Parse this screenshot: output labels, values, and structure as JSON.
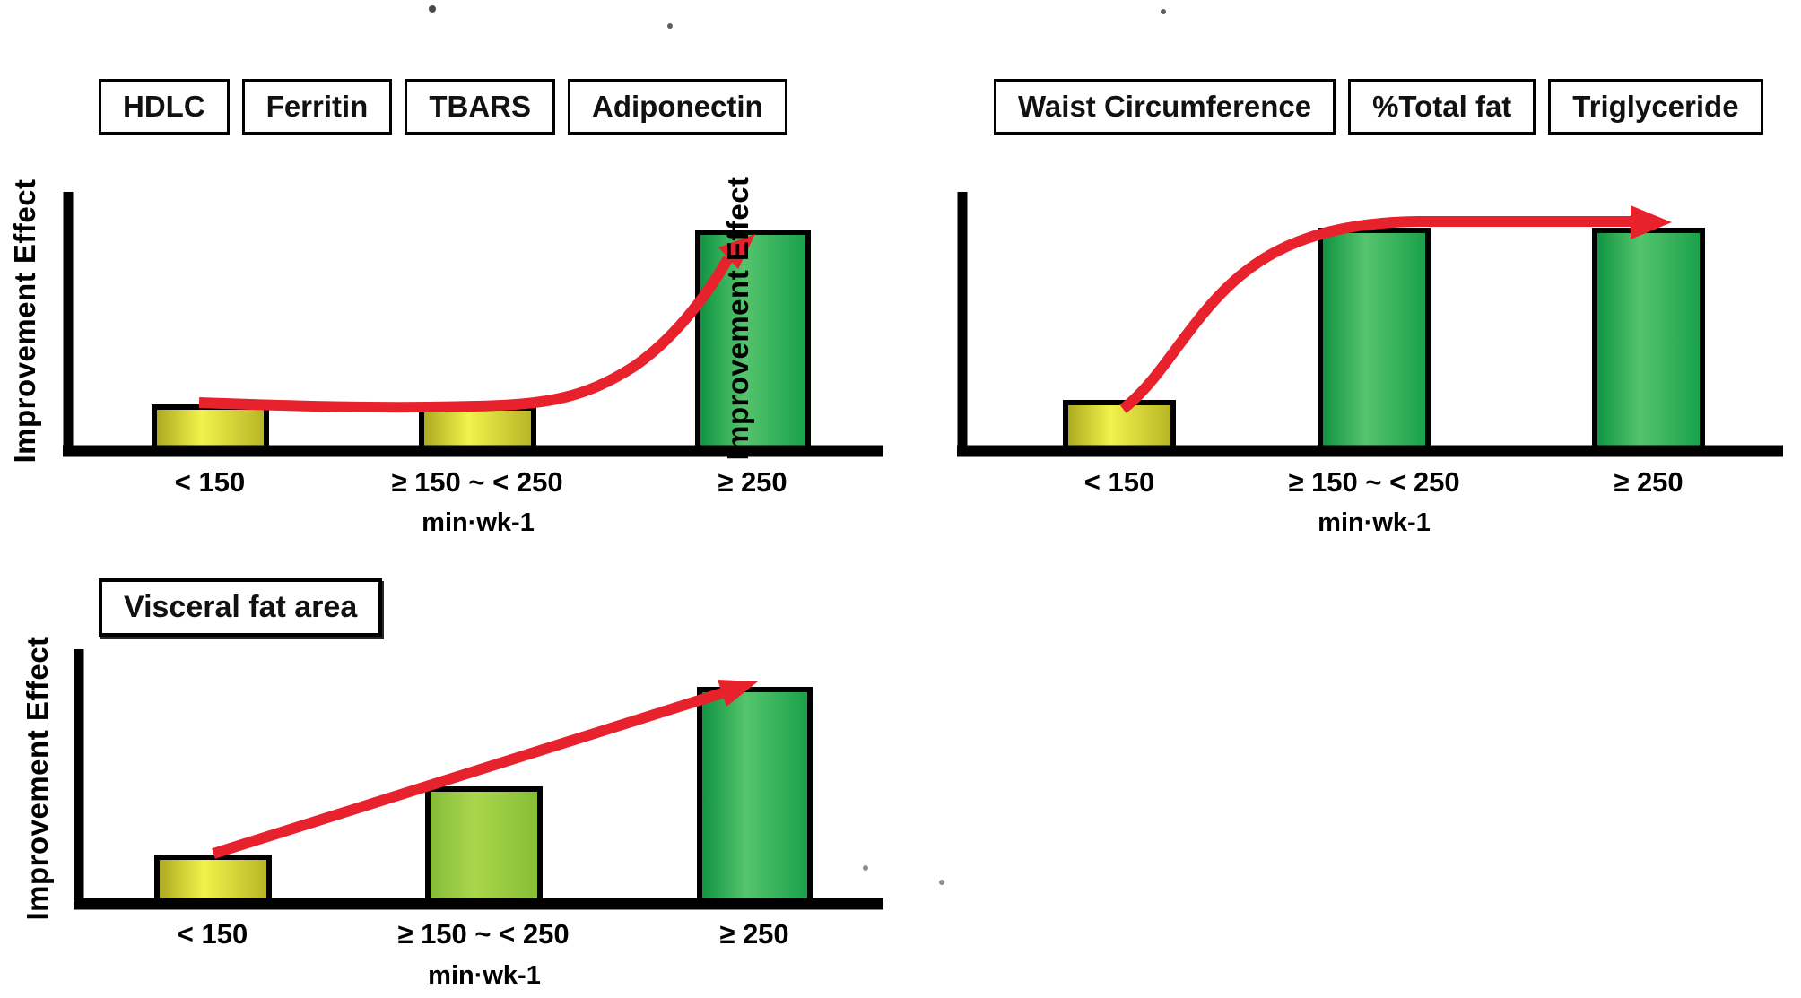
{
  "colors": {
    "background": "#ffffff",
    "arrow_red": "#e8222c",
    "axis": "#000000",
    "bar_outline": "#000000",
    "box_fill": "#ffffff",
    "box_border": "#000000",
    "bar_yellow": [
      "#a9a61d",
      "#f1f24c",
      "#b6b325"
    ],
    "bar_yellowgreen": [
      "#83ba38",
      "#aad64b",
      "#86bd33"
    ],
    "bar_green": [
      "#0d9140",
      "#55c46d",
      "#17a04a"
    ]
  },
  "chart_data": [
    {
      "type": "bar",
      "panel": "top-left",
      "outcome_boxes": [
        "HDLC",
        "Ferritin",
        "TBARS",
        "Adiponectin"
      ],
      "ylabel": "Improvement Effect",
      "xlabel": "",
      "x_unit": "min·wk-1",
      "categories": [
        "< 150",
        "≥ 150 ~ < 250",
        "≥ 250"
      ],
      "values": [
        0.2,
        0.195,
        0.99
      ],
      "bar_colors": [
        "yellow",
        "yellow",
        "green"
      ],
      "ylim": [
        0,
        1
      ],
      "grid": false,
      "annotation": "red arrow: flat across first two categories, then steep rise to ≥ 250"
    },
    {
      "type": "bar",
      "panel": "top-right",
      "outcome_boxes": [
        "Waist Circumference",
        "%Total fat",
        "Triglyceride"
      ],
      "ylabel": "Improvement Effect",
      "xlabel": "",
      "x_unit": "min·wk-1",
      "categories": [
        "< 150",
        "≥ 150 ~ < 250",
        "≥ 250"
      ],
      "values": [
        0.22,
        1.0,
        1.0
      ],
      "bar_colors": [
        "yellow",
        "green",
        "green"
      ],
      "ylim": [
        0,
        1
      ],
      "grid": false,
      "annotation": "red arrow: rises from < 150 then plateaus across ≥ 150 ~ < 250 and ≥ 250"
    },
    {
      "type": "bar",
      "panel": "bottom-left",
      "outcome_boxes": [
        "Visceral fat area"
      ],
      "ylabel": "Improvement Effect",
      "xlabel": "",
      "x_unit": "min·wk-1",
      "categories": [
        "< 150",
        "≥ 150 ~ < 250",
        "≥ 250"
      ],
      "values": [
        0.21,
        0.52,
        0.97
      ],
      "bar_colors": [
        "yellow",
        "yellowgreen",
        "green"
      ],
      "ylim": [
        0,
        1
      ],
      "grid": false,
      "annotation": "red arrow: straight steady rise from < 150 to ≥ 250"
    }
  ]
}
